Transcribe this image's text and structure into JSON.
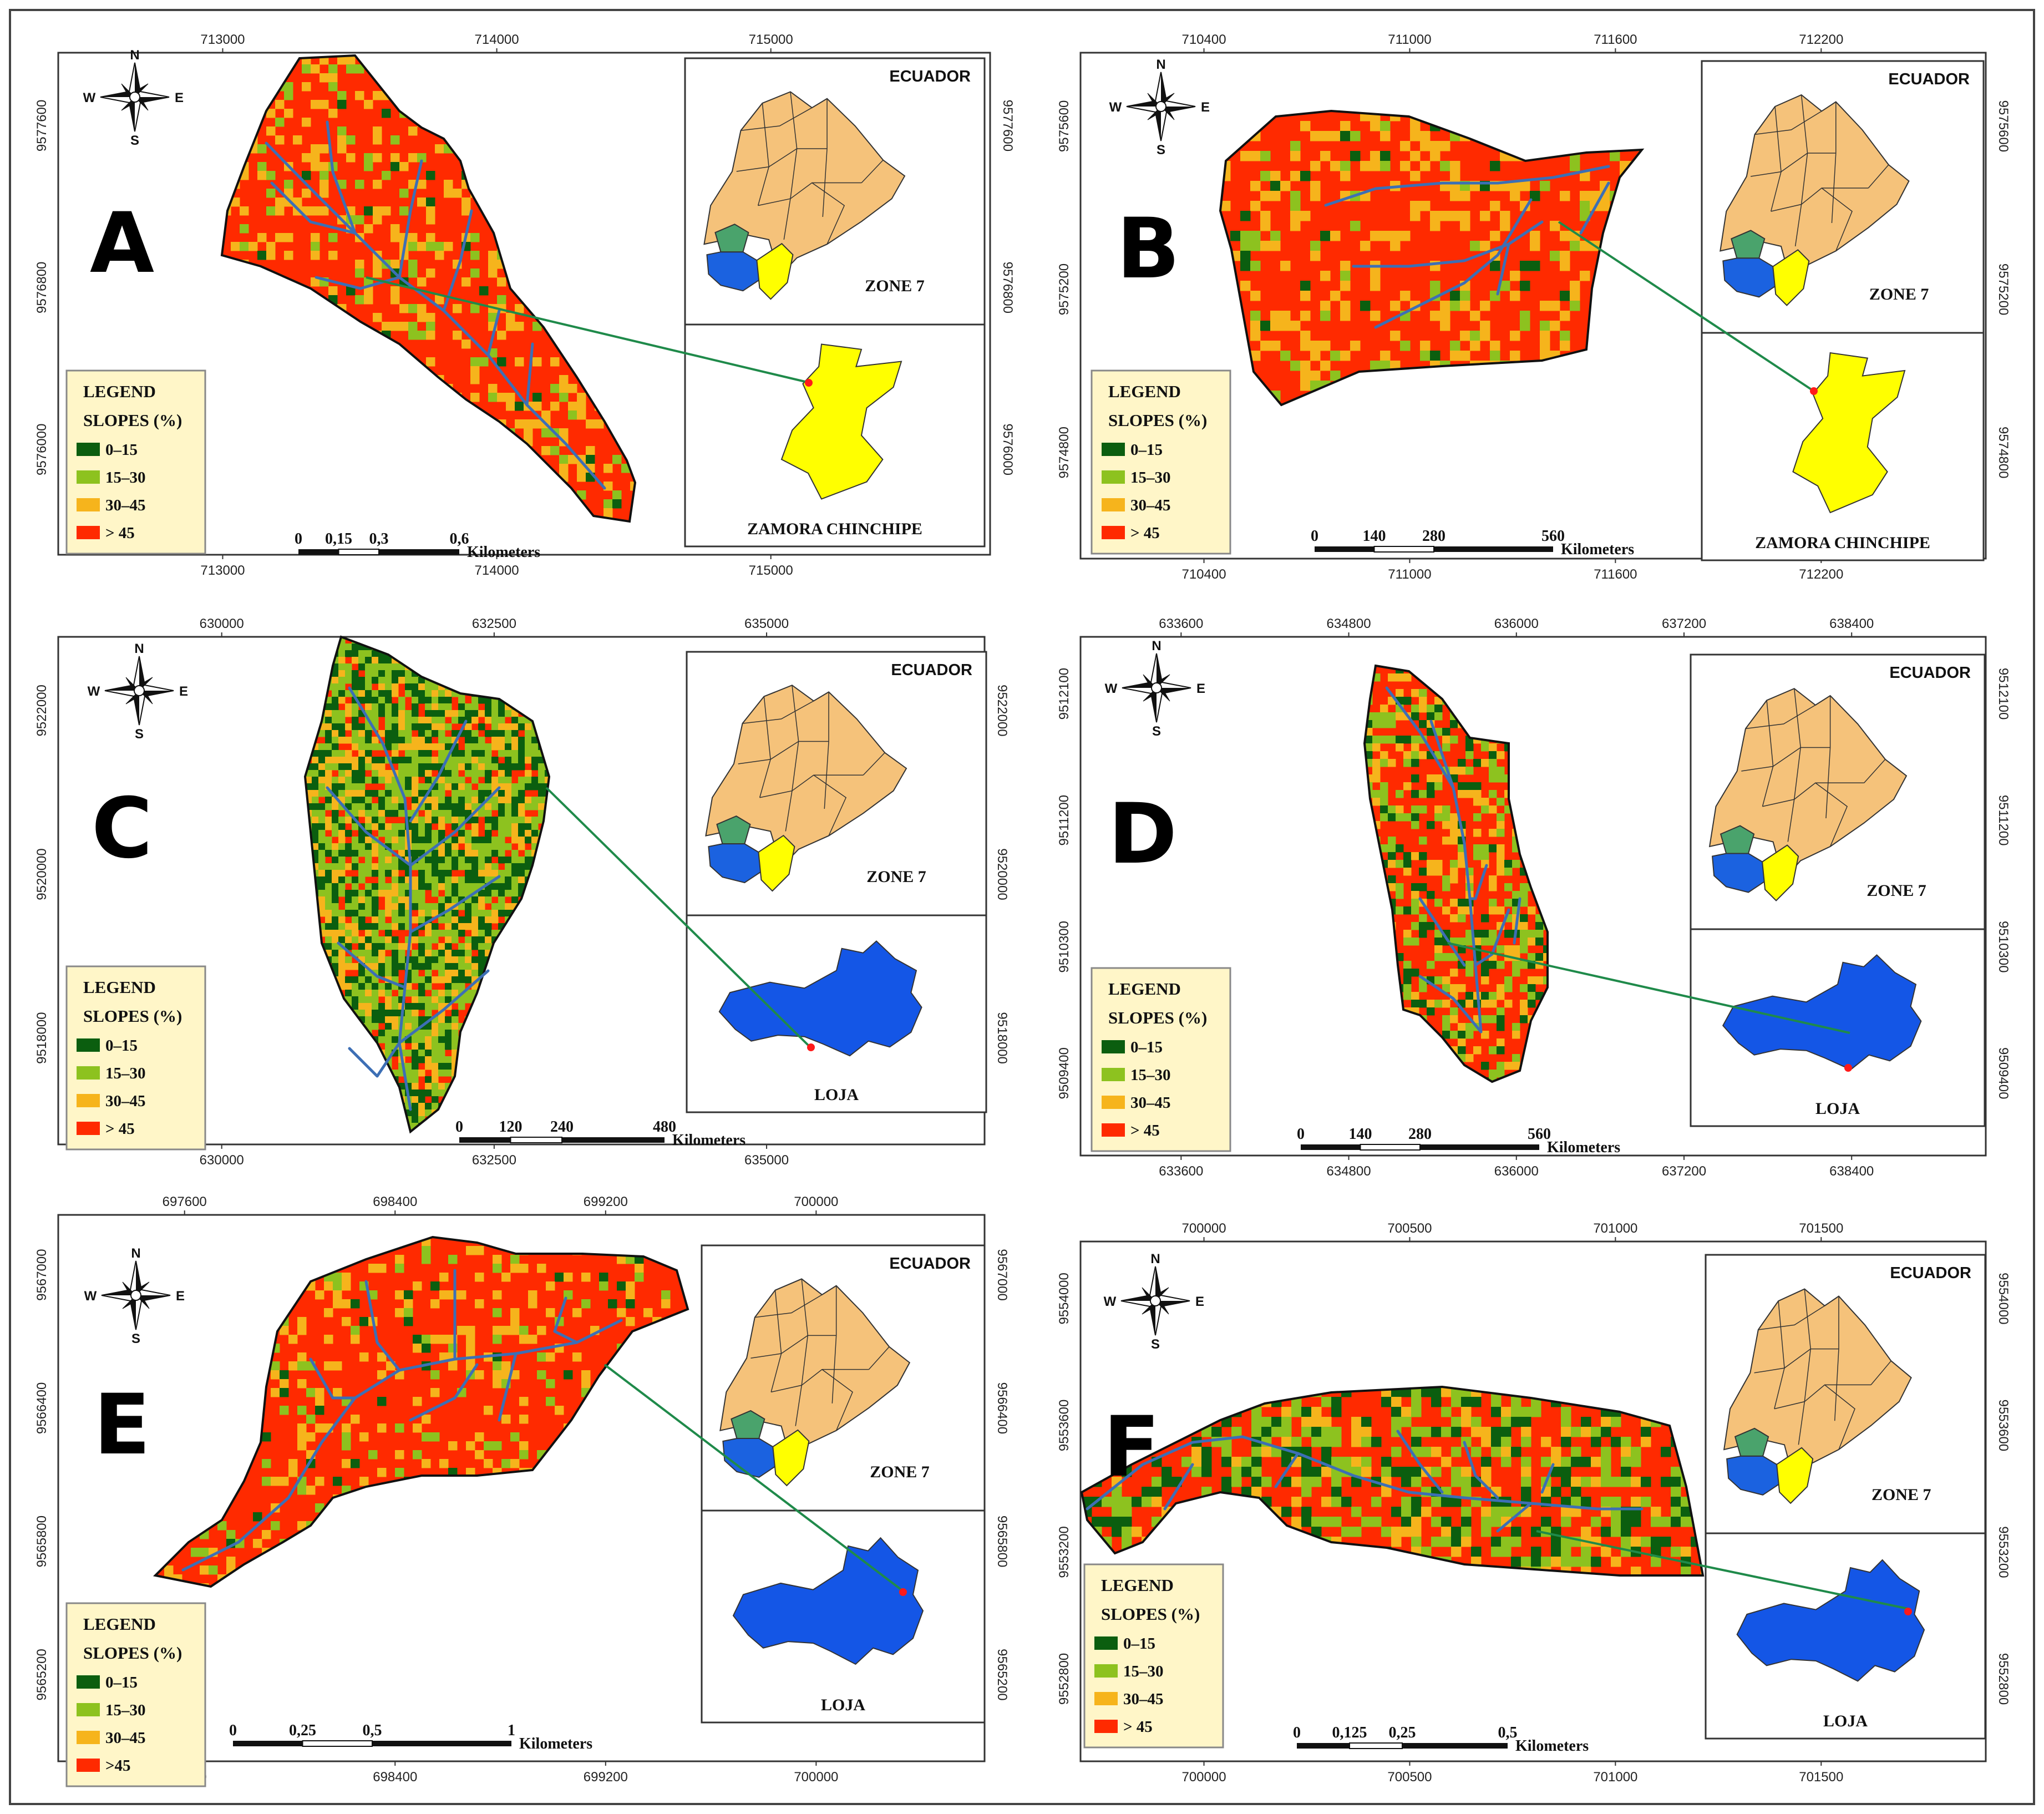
{
  "figure": {
    "colors": {
      "slope_0_15": "#0b5e0f",
      "slope_15_30": "#8dc21f",
      "slope_30_45": "#f6b41c",
      "slope_gt45": "#ff2a00",
      "stream": "#3d6fb5",
      "ecuador_fill": "#f5c27a",
      "zone7_green": "#4aa36c",
      "zone7_blue": "#1b62e0",
      "zone7_yellow": "#ffff00",
      "loja_blue": "#1456e6",
      "zamora_yellow": "#ffff00",
      "leader_line": "#1f8a4a",
      "legend_bg": "#fff6c8"
    },
    "panels": [
      {
        "letter": "A",
        "x_ticks": [
          "713000",
          "714000",
          "715000"
        ],
        "y_ticks": [
          "9577600",
          "9576800",
          "9576000"
        ],
        "legend": {
          "title": "LEGEND",
          "subtitle": "SLOPES (%)",
          "classes": [
            "0–15",
            "15–30",
            "30–45",
            "> 45"
          ]
        },
        "scale": {
          "labels": [
            "0",
            "0,15",
            "0,3",
            "0,6"
          ],
          "unit": "Kilometers"
        },
        "inset_top": {
          "title": "ECUADOR",
          "label": "ZONE 7"
        },
        "inset_bottom": {
          "label": "ZAMORA CHINCHIPE"
        }
      },
      {
        "letter": "B",
        "x_ticks": [
          "710400",
          "711000",
          "711600",
          "712200"
        ],
        "y_ticks": [
          "9575600",
          "9575200",
          "9574800"
        ],
        "legend": {
          "title": "LEGEND",
          "subtitle": "SLOPES (%)",
          "classes": [
            "0–15",
            "15–30",
            "30–45",
            "> 45"
          ]
        },
        "scale": {
          "labels": [
            "0",
            "140",
            "280",
            "560"
          ],
          "unit": "Kilometers"
        },
        "inset_top": {
          "title": "ECUADOR",
          "label": "ZONE 7"
        },
        "inset_bottom": {
          "label": "ZAMORA CHINCHIPE"
        }
      },
      {
        "letter": "C",
        "x_ticks": [
          "630000",
          "632500",
          "635000"
        ],
        "y_ticks": [
          "9522000",
          "9520000",
          "9518000"
        ],
        "legend": {
          "title": "LEGEND",
          "subtitle": "SLOPES (%)",
          "classes": [
            "0–15",
            "15–30",
            "30–45",
            "> 45"
          ]
        },
        "scale": {
          "labels": [
            "0",
            "120",
            "240",
            "480"
          ],
          "unit": "Kilometers"
        },
        "inset_top": {
          "title": "ECUADOR",
          "label": "ZONE 7"
        },
        "inset_bottom": {
          "label": "LOJA"
        }
      },
      {
        "letter": "D",
        "x_ticks": [
          "633600",
          "634800",
          "636000",
          "637200",
          "638400"
        ],
        "y_ticks": [
          "9512100",
          "9511200",
          "9510300",
          "9509400"
        ],
        "legend": {
          "title": "LEGEND",
          "subtitle": "SLOPES (%)",
          "classes": [
            "0–15",
            "15–30",
            "30–45",
            "> 45"
          ]
        },
        "scale": {
          "labels": [
            "0",
            "140",
            "280",
            "560"
          ],
          "unit": "Kilometers"
        },
        "inset_top": {
          "title": "ECUADOR",
          "label": "ZONE 7"
        },
        "inset_bottom": {
          "label": "LOJA"
        }
      },
      {
        "letter": "E",
        "x_ticks": [
          "697600",
          "698400",
          "699200",
          "700000"
        ],
        "y_ticks": [
          "9567000",
          "9566400",
          "9565800",
          "9565200"
        ],
        "legend": {
          "title": "LEGEND",
          "subtitle": "SLOPES (%)",
          "classes": [
            "0–15",
            "15–30",
            "30–45",
            ">45"
          ]
        },
        "scale": {
          "labels": [
            "0",
            "0,25",
            "0,5",
            "1"
          ],
          "unit": "Kilometers"
        },
        "inset_top": {
          "title": "ECUADOR",
          "label": "ZONE 7"
        },
        "inset_bottom": {
          "label": "LOJA"
        }
      },
      {
        "letter": "F",
        "x_ticks": [
          "700000",
          "700500",
          "701000",
          "701500"
        ],
        "y_ticks": [
          "9554000",
          "9553600",
          "9553200",
          "9552800"
        ],
        "legend": {
          "title": "LEGEND",
          "subtitle": "SLOPES (%)",
          "classes": [
            "0–15",
            "15–30",
            "30–45",
            "> 45"
          ]
        },
        "scale": {
          "labels": [
            "0",
            "0,125",
            "0,25",
            "0,5"
          ],
          "unit": "Kilometers"
        },
        "inset_top": {
          "title": "ECUADOR",
          "label": "ZONE 7"
        },
        "inset_bottom": {
          "label": "LOJA"
        }
      }
    ],
    "compass": {
      "n": "N",
      "s": "S",
      "e": "E",
      "w": "W"
    }
  }
}
